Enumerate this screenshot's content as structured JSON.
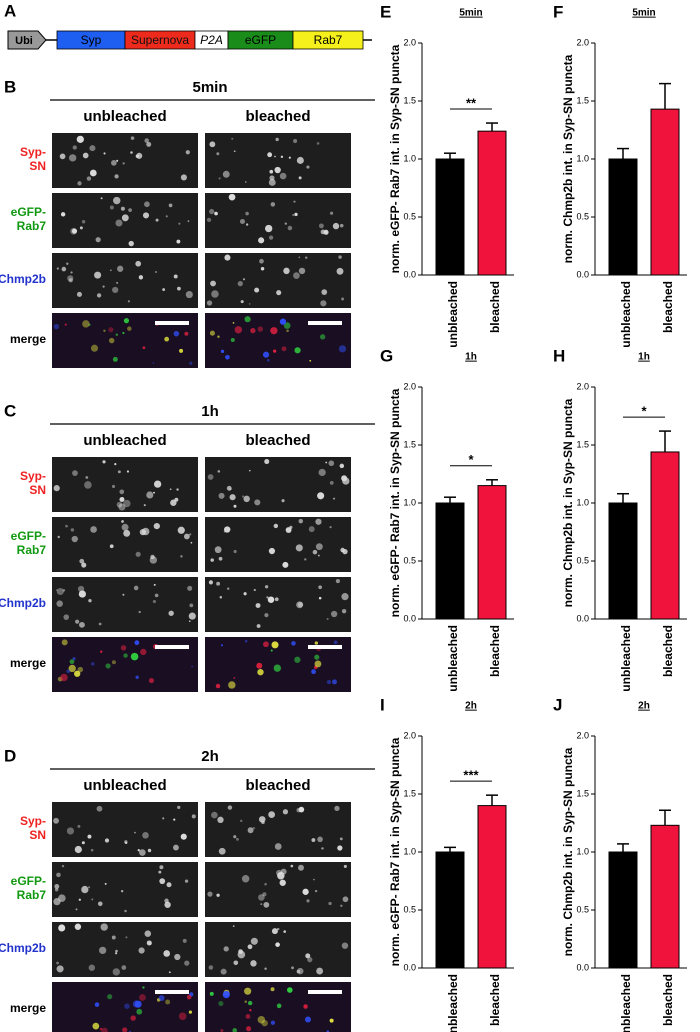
{
  "construct": {
    "panel": "A",
    "promoter": "Ubi",
    "segments": [
      {
        "label": "Syp",
        "color": "#1e5ef0"
      },
      {
        "label": "Supernova",
        "color": "#ee2a1c"
      },
      {
        "label": "P2A",
        "color": "#ffffff"
      },
      {
        "label": "eGFP",
        "color": "#1a8c1a"
      },
      {
        "label": "Rab7",
        "color": "#f5f01c"
      }
    ]
  },
  "image_panels": [
    {
      "panel": "B",
      "time": "5min",
      "columns": [
        "unbleached",
        "bleached"
      ],
      "rows": [
        [
          "Syp-",
          "SN"
        ],
        [
          "eGFP-",
          "Rab7"
        ],
        [
          "Chmp2b"
        ],
        [
          "merge"
        ]
      ]
    },
    {
      "panel": "C",
      "time": "1h",
      "columns": [
        "unbleached",
        "bleached"
      ],
      "rows": [
        [
          "Syp-",
          "SN"
        ],
        [
          "eGFP-",
          "Rab7"
        ],
        [
          "Chmp2b"
        ],
        [
          "merge"
        ]
      ]
    },
    {
      "panel": "D",
      "time": "2h",
      "columns": [
        "unbleached",
        "bleached"
      ],
      "rows": [
        [
          "Syp-",
          "SN"
        ],
        [
          "eGFP-",
          "Rab7"
        ],
        [
          "Chmp2b"
        ],
        [
          "merge"
        ]
      ]
    }
  ],
  "chart_data": [
    {
      "type": "bar",
      "panel": "E",
      "title": "5min",
      "ylabel": "norm. eGFP- Rab7 int. in Syp-SN puncta",
      "categories": [
        "unbleached",
        "bleached"
      ],
      "values": [
        1.0,
        1.24
      ],
      "errors": [
        0.05,
        0.07
      ],
      "colors": [
        "#000000",
        "#f0143c"
      ],
      "annotation": "**",
      "ylim": [
        0,
        2
      ],
      "yticks": [
        {
          "value": 0,
          "label": "0.0"
        },
        0.5,
        {
          "value": 1,
          "label": "1.0"
        },
        1.5,
        {
          "value": 2,
          "label": "2.0"
        }
      ]
    },
    {
      "type": "bar",
      "panel": "F",
      "title": "5min",
      "ylabel": "norm. Chmp2b int. in Syp-SN puncta",
      "categories": [
        "unbleached",
        "bleached"
      ],
      "values": [
        1.0,
        1.43
      ],
      "errors": [
        0.09,
        0.22
      ],
      "colors": [
        "#000000",
        "#f0143c"
      ],
      "ylim": [
        0,
        2
      ],
      "yticks": [
        {
          "value": 0,
          "label": "0.0"
        },
        0.5,
        {
          "value": 1,
          "label": "1.0"
        },
        1.5,
        {
          "value": 2,
          "label": "2.0"
        }
      ]
    },
    {
      "type": "bar",
      "panel": "G",
      "title": "1h",
      "ylabel": "norm. eGFP- Rab7 int. in Syp-SN puncta",
      "categories": [
        "unbleached",
        "bleached"
      ],
      "values": [
        1.0,
        1.15
      ],
      "errors": [
        0.05,
        0.05
      ],
      "colors": [
        "#000000",
        "#f0143c"
      ],
      "annotation": "*",
      "ylim": [
        0,
        2
      ],
      "yticks": [
        {
          "value": 0,
          "label": "0.0"
        },
        0.5,
        {
          "value": 1,
          "label": "1.0"
        },
        1.5,
        {
          "value": 2,
          "label": "2.0"
        }
      ]
    },
    {
      "type": "bar",
      "panel": "H",
      "title": "1h",
      "ylabel": "norm. Chmp2b int. in Syp-SN puncta",
      "categories": [
        "unbleached",
        "bleached"
      ],
      "values": [
        1.0,
        1.44
      ],
      "errors": [
        0.08,
        0.18
      ],
      "colors": [
        "#000000",
        "#f0143c"
      ],
      "annotation": "*",
      "ylim": [
        0,
        2
      ],
      "yticks": [
        {
          "value": 0,
          "label": "0.0"
        },
        0.5,
        {
          "value": 1,
          "label": "1.0"
        },
        1.5,
        {
          "value": 2,
          "label": "2.0"
        }
      ]
    },
    {
      "type": "bar",
      "panel": "I",
      "title": "2h",
      "ylabel": "norm. eGFP- Rab7 int. in Syp-SN puncta",
      "categories": [
        "unbleached",
        "bleached"
      ],
      "values": [
        1.0,
        1.4
      ],
      "errors": [
        0.04,
        0.09
      ],
      "colors": [
        "#000000",
        "#f0143c"
      ],
      "annotation": "***",
      "ylim": [
        0,
        2
      ],
      "yticks": [
        {
          "value": 0,
          "label": "0.0"
        },
        0.5,
        {
          "value": 1,
          "label": "1.0"
        },
        1.5,
        {
          "value": 2,
          "label": "2.0"
        }
      ]
    },
    {
      "type": "bar",
      "panel": "J",
      "title": "2h",
      "ylabel": "norm. Chmp2b int. in Syp-SN puncta",
      "categories": [
        "unbleached",
        "bleached"
      ],
      "values": [
        1.0,
        1.23
      ],
      "errors": [
        0.07,
        0.13
      ],
      "colors": [
        "#000000",
        "#f0143c"
      ],
      "ylim": [
        0,
        2
      ],
      "yticks": [
        {
          "value": 0,
          "label": "0.0"
        },
        0.5,
        {
          "value": 1,
          "label": "1.0"
        },
        1.5,
        {
          "value": 2,
          "label": "2.0"
        }
      ]
    }
  ]
}
